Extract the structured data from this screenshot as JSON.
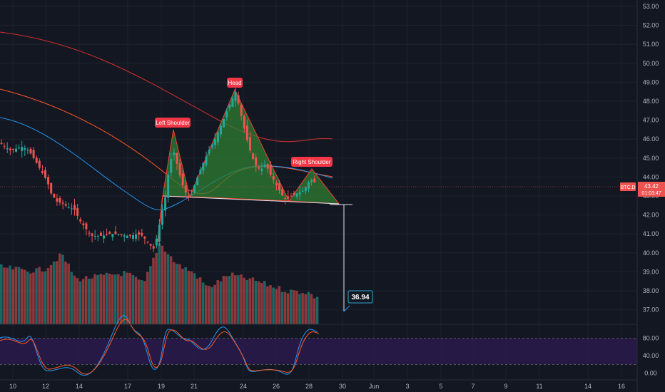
{
  "chart_data": {
    "type": "candlestick",
    "symbol_badge": "BTC.D",
    "last_price": "43.42",
    "countdown": "01:03:47",
    "price_axis": {
      "ylim": [
        36.6,
        53.3
      ],
      "ticks": [
        "53.00",
        "52.00",
        "51.00",
        "50.00",
        "49.00",
        "48.00",
        "47.00",
        "46.00",
        "45.00",
        "44.00",
        "43.00",
        "42.00",
        "41.00",
        "40.00",
        "39.00",
        "38.00",
        "37.00"
      ]
    },
    "time_axis": {
      "ticks": [
        "10",
        "12",
        "14",
        "17",
        "19",
        "21",
        "24",
        "26",
        "28",
        "30",
        "Jun",
        "3",
        "5",
        "7",
        "9",
        "11",
        "14",
        "16"
      ]
    },
    "pattern_labels": {
      "left_shoulder": "Left Shoulder",
      "head": "Head",
      "right_shoulder": "Right Shoulder"
    },
    "target": "36.94",
    "oscillator": {
      "ticks": [
        "80.00",
        "40.00",
        "0.00"
      ],
      "ylim": [
        -10,
        100
      ],
      "band": [
        20,
        80
      ]
    },
    "colors": {
      "up": "#26a69a",
      "down": "#ef5350",
      "pattern_fill": "#2e7d32",
      "pattern_line": "#ff3b30",
      "ma_fast": "#2196f3",
      "ma_slow": "#ff5722",
      "ma_long": "#d32f2f",
      "osc_band": "#2a1a4a"
    }
  }
}
